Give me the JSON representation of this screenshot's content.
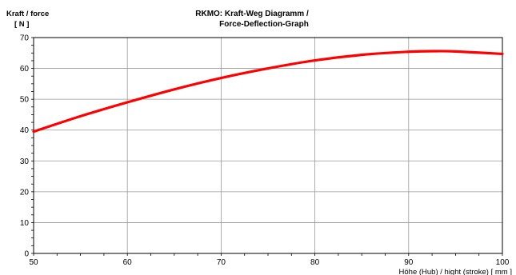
{
  "chart_data": {
    "type": "line",
    "title_line1": "RKMO: Kraft-Weg Diagramm /",
    "title_line2": "Force-Deflection-Graph",
    "ylabel_line1": "Kraft / force",
    "ylabel_line2": "[ N ]",
    "xlabel": "Höhe (Hub) / hight (stroke)  [ mm ]",
    "xlim": [
      50,
      100
    ],
    "ylim": [
      0,
      70
    ],
    "x_ticks": [
      50,
      60,
      70,
      80,
      90,
      100
    ],
    "y_ticks": [
      0,
      10,
      20,
      30,
      40,
      50,
      60,
      70
    ],
    "grid": true,
    "series": [
      {
        "color": "#ff0000",
        "x": [
          50,
          55,
          60,
          65,
          70,
          75,
          80,
          85,
          90,
          93,
          95,
          100
        ],
        "y": [
          39.5,
          44.5,
          49.0,
          53.2,
          56.9,
          60.0,
          62.6,
          64.4,
          65.4,
          65.6,
          65.5,
          64.7
        ]
      }
    ]
  }
}
